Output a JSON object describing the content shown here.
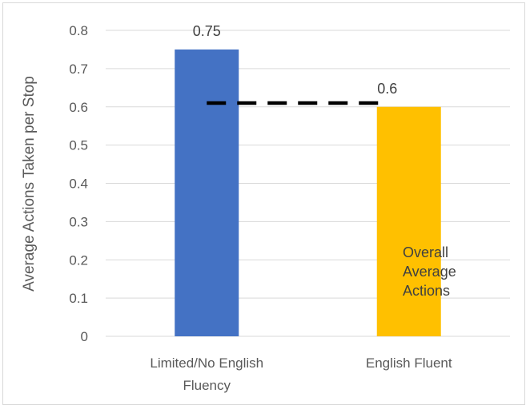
{
  "chart_data": {
    "type": "bar",
    "categories": [
      "Limited/No English Fluency",
      "English Fluent"
    ],
    "category_lines": [
      [
        "Limited/No English",
        "Fluency"
      ],
      [
        "English Fluent"
      ]
    ],
    "values": [
      0.75,
      0.6
    ],
    "data_labels": [
      "0.75",
      "0.6"
    ],
    "bar_colors": [
      "#4472c4",
      "#ffc000"
    ],
    "ylabel": "Average Actions Taken per Stop",
    "ylim": [
      0,
      0.8
    ],
    "yticks": [
      0,
      0.1,
      0.2,
      0.3,
      0.4,
      0.5,
      0.6,
      0.7,
      0.8
    ],
    "ytick_labels": [
      "0",
      "0.1",
      "0.2",
      "0.3",
      "0.4",
      "0.5",
      "0.6",
      "0.7",
      "0.8"
    ],
    "grid": true,
    "reference_line": {
      "value": 0.61,
      "style": "dashed",
      "color": "#000000",
      "label_lines": [
        "Overall",
        "Average",
        "Actions"
      ]
    }
  }
}
